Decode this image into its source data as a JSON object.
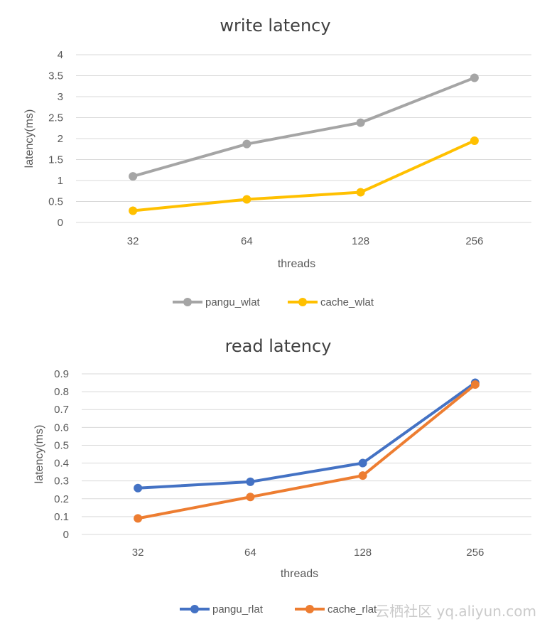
{
  "chart_data": [
    {
      "type": "line",
      "title": "write latency",
      "xlabel": "threads",
      "ylabel": "latency(ms)",
      "categories": [
        "32",
        "64",
        "128",
        "256"
      ],
      "ylim": [
        0,
        4
      ],
      "yticks": [
        "0",
        "0.5",
        "1",
        "1.5",
        "2",
        "2.5",
        "3",
        "3.5",
        "4"
      ],
      "grid": true,
      "legend_position": "bottom",
      "series": [
        {
          "name": "pangu_wlat",
          "color": "#a5a5a5",
          "values": [
            1.1,
            1.87,
            2.38,
            3.45
          ]
        },
        {
          "name": "cache_wlat",
          "color": "#ffc000",
          "values": [
            0.28,
            0.55,
            0.72,
            1.95
          ]
        }
      ]
    },
    {
      "type": "line",
      "title": "read latency",
      "xlabel": "threads",
      "ylabel": "latency(ms)",
      "categories": [
        "32",
        "64",
        "128",
        "256"
      ],
      "ylim": [
        0,
        0.9
      ],
      "yticks": [
        "0",
        "0.1",
        "0.2",
        "0.3",
        "0.4",
        "0.5",
        "0.6",
        "0.7",
        "0.8",
        "0.9"
      ],
      "grid": true,
      "legend_position": "bottom",
      "series": [
        {
          "name": "pangu_rlat",
          "color": "#4472c4",
          "values": [
            0.26,
            0.295,
            0.4,
            0.85
          ]
        },
        {
          "name": "cache_rlat",
          "color": "#ed7d31",
          "values": [
            0.09,
            0.21,
            0.33,
            0.84
          ]
        }
      ]
    }
  ],
  "watermark": "云栖社区 yq.aliyun.com"
}
